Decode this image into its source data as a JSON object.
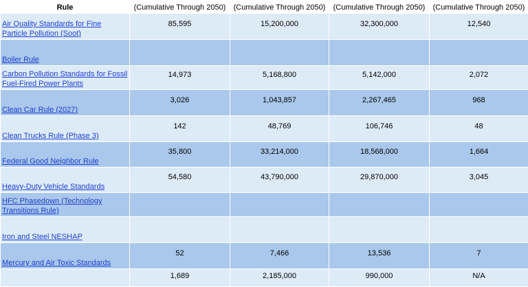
{
  "header": {
    "rule": "Rule",
    "cols": [
      "(Cumulative Through 2050)",
      "(Cumulative Through 2050)",
      "(Cumulative Through 2050)",
      "(Cumulative Through 2050)"
    ]
  },
  "rows": [
    {
      "rule": "Air Quality Standards for Fine Particle Pollution (Soot)",
      "v": [
        "85,595",
        "15,200,000",
        "32,300,000",
        "12,540"
      ]
    },
    {
      "rule": "Boiler Rule",
      "v": [
        "",
        "",
        "",
        ""
      ]
    },
    {
      "rule": "Carbon Pollution Standards for Fossil Fuel-Fired Power Plants",
      "v": [
        "14,973",
        "5,168,800",
        "5,142,000",
        "2,072"
      ]
    },
    {
      "rule": "Clean Car Rule (2027)",
      "v": [
        "3,026",
        "1,043,857",
        "2,267,465",
        "968"
      ]
    },
    {
      "rule": "Clean Trucks Rule (Phase 3)",
      "v": [
        "142",
        "48,769",
        "106,746",
        "48"
      ]
    },
    {
      "rule": "Federal Good Neighbor Rule",
      "v": [
        "35,800",
        "33,214,000",
        "18,568,000",
        "1,664"
      ]
    },
    {
      "rule": "Heavy-Duty Vehicle Standards",
      "v": [
        "54,580",
        "43,790,000",
        "29,870,000",
        "3,045"
      ]
    },
    {
      "rule": "HFC Phasedown (Technology Transitions Rule)",
      "v": [
        "",
        "",
        "",
        ""
      ]
    },
    {
      "rule": "Iron and Steel NESHAP",
      "v": [
        "",
        "",
        "",
        ""
      ]
    },
    {
      "rule": "Mercury and Air Toxic Standards",
      "v": [
        "52",
        "7,466",
        "13,536",
        "7"
      ]
    },
    {
      "rule": "",
      "v": [
        "1,689",
        "2,185,000",
        "990,000",
        "N/A"
      ]
    }
  ]
}
